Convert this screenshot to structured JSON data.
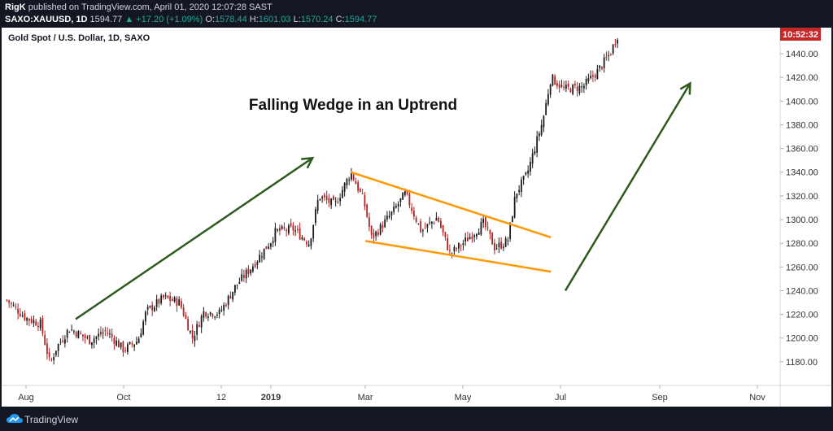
{
  "header": {
    "author": "RigK",
    "published_text": "published on TradingView.com, April 01, 2020 12:07:28 SAST",
    "symbol": "SAXO:XAUUSD, 1D",
    "last_price": "1594.77",
    "change": "▲ +17.20 (+1.09%)",
    "ohlc": [
      {
        "label": "O:",
        "value": "1578.44"
      },
      {
        "label": "H:",
        "value": "1601.03"
      },
      {
        "label": "L:",
        "value": "1570.24"
      },
      {
        "label": "C:",
        "value": "1594.77"
      }
    ]
  },
  "footer": {
    "brand": "TradingView"
  },
  "colors": {
    "up": "#26a69a",
    "candle_body": "#1a1a1a",
    "candle_down": "#b22222",
    "wedge": "#ff9800",
    "arrow": "#2d5a1e",
    "timer_bg": "#c62828",
    "axis_text": "#333333"
  },
  "chart_data": {
    "type": "candlestick",
    "instrument_label": "Gold Spot / U.S. Dollar, 1D, SAXO",
    "annotation": "Falling Wedge in an Uptrend",
    "countdown": "10:52:32",
    "x_ticks": [
      "Aug",
      "Oct",
      "12",
      "2019",
      "Mar",
      "May",
      "Jul",
      "Sep",
      "Nov"
    ],
    "x_tick_dates": [
      "2018-08-01",
      "2018-10-01",
      "2018-12-01",
      "2019-01-01",
      "2019-03-01",
      "2019-05-01",
      "2019-07-01",
      "2019-09-01",
      "2019-11-01"
    ],
    "y_ticks": [
      1180,
      1200,
      1220,
      1240,
      1260,
      1280,
      1300,
      1320,
      1340,
      1360,
      1380,
      1400,
      1420,
      1440
    ],
    "ylim": [
      1160,
      1462
    ],
    "close_path": [
      [
        "2018-07-20",
        1232
      ],
      [
        "2018-08-01",
        1217
      ],
      [
        "2018-08-10",
        1212
      ],
      [
        "2018-08-16",
        1178
      ],
      [
        "2018-08-20",
        1192
      ],
      [
        "2018-08-28",
        1208
      ],
      [
        "2018-09-10",
        1198
      ],
      [
        "2018-09-20",
        1206
      ],
      [
        "2018-10-01",
        1190
      ],
      [
        "2018-10-10",
        1198
      ],
      [
        "2018-10-15",
        1222
      ],
      [
        "2018-10-26",
        1234
      ],
      [
        "2018-11-05",
        1230
      ],
      [
        "2018-11-13",
        1200
      ],
      [
        "2018-11-20",
        1222
      ],
      [
        "2018-11-30",
        1221
      ],
      [
        "2018-12-10",
        1244
      ],
      [
        "2018-12-20",
        1260
      ],
      [
        "2019-01-01",
        1282
      ],
      [
        "2019-01-04",
        1290
      ],
      [
        "2019-01-15",
        1292
      ],
      [
        "2019-01-25",
        1280
      ],
      [
        "2019-01-31",
        1320
      ],
      [
        "2019-02-10",
        1312
      ],
      [
        "2019-02-20",
        1340
      ],
      [
        "2019-02-28",
        1316
      ],
      [
        "2019-03-05",
        1284
      ],
      [
        "2019-03-18",
        1306
      ],
      [
        "2019-03-26",
        1322
      ],
      [
        "2019-04-05",
        1290
      ],
      [
        "2019-04-15",
        1302
      ],
      [
        "2019-04-23",
        1271
      ],
      [
        "2019-05-01",
        1280
      ],
      [
        "2019-05-14",
        1297
      ],
      [
        "2019-05-21",
        1276
      ],
      [
        "2019-05-29",
        1282
      ],
      [
        "2019-06-03",
        1322
      ],
      [
        "2019-06-10",
        1338
      ],
      [
        "2019-06-20",
        1384
      ],
      [
        "2019-06-25",
        1420
      ],
      [
        "2019-07-03",
        1410
      ],
      [
        "2019-07-15",
        1412
      ],
      [
        "2019-07-24",
        1425
      ],
      [
        "2019-08-01",
        1440
      ],
      [
        "2019-08-07",
        1460
      ]
    ],
    "falling_wedge": {
      "upper": [
        [
          "2019-02-20",
          1340
        ],
        [
          "2019-06-25",
          1285
        ]
      ],
      "lower": [
        [
          "2019-03-01",
          1282
        ],
        [
          "2019-06-25",
          1256
        ]
      ]
    },
    "trend_arrows": [
      {
        "from": [
          "2018-09-01",
          1216
        ],
        "to": [
          "2019-01-27",
          1352
        ]
      },
      {
        "from": [
          "2019-07-04",
          1240
        ],
        "to": [
          "2019-09-20",
          1415
        ]
      }
    ]
  }
}
